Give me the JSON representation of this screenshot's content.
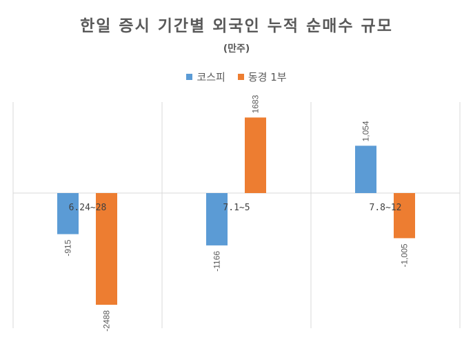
{
  "chart_data": {
    "type": "bar",
    "title": "한일 증시 기간별 외국인 누적 순매수 규모",
    "subtitle": "(만주)",
    "categories": [
      "6.24~28",
      "7.1~5",
      "7.8~12"
    ],
    "series": [
      {
        "name": "코스피",
        "color": "#5b9bd5",
        "values": [
          -915,
          -1166,
          1054
        ],
        "labels": [
          "-915",
          "-1166",
          "1,054"
        ]
      },
      {
        "name": "동경 1부",
        "color": "#ed7d31",
        "values": [
          -2488,
          1683,
          -1005
        ],
        "labels": [
          "-2488",
          "1683",
          "-1,005"
        ]
      }
    ],
    "ylim": [
      -2900,
      2100
    ],
    "grid": "vertical category dividers",
    "legend_position": "top"
  }
}
